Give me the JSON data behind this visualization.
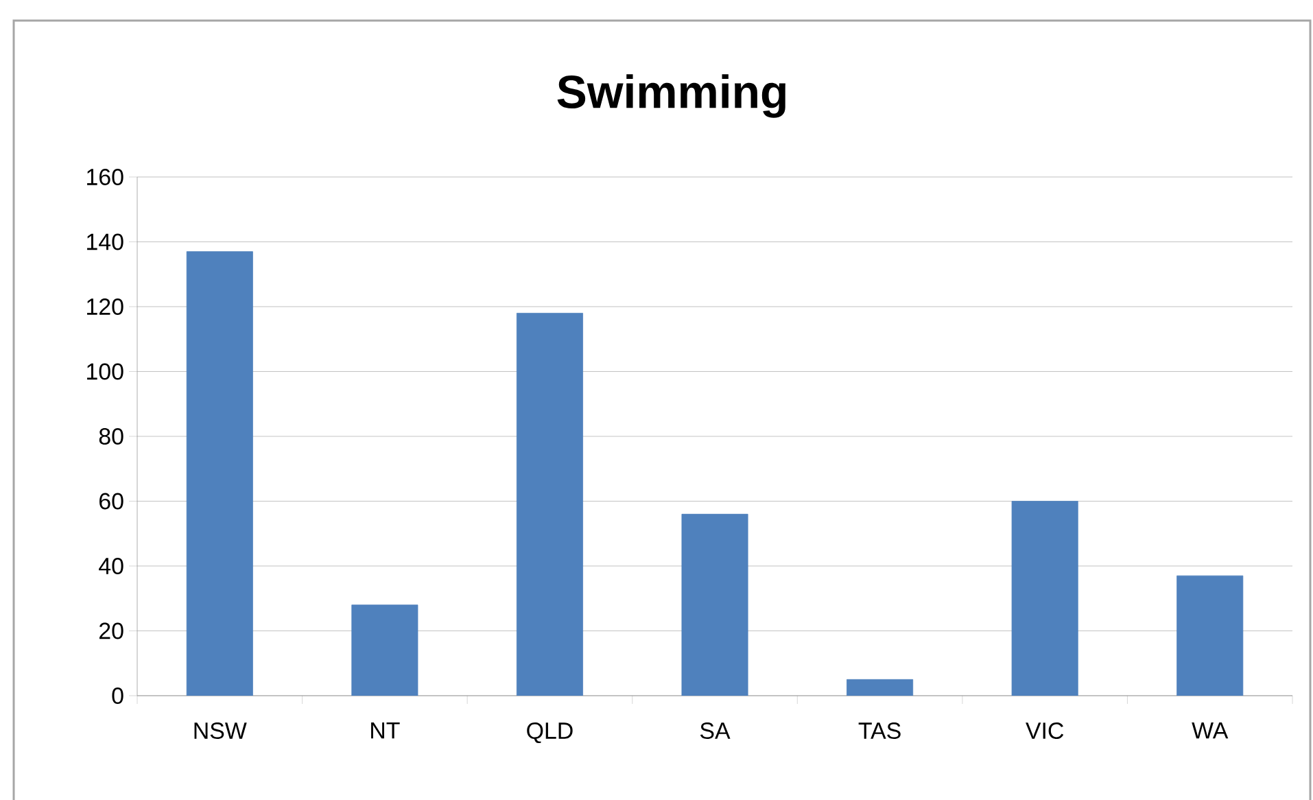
{
  "chart_data": {
    "type": "bar",
    "title": "Swimming",
    "categories": [
      "NSW",
      "NT",
      "QLD",
      "SA",
      "TAS",
      "VIC",
      "WA"
    ],
    "values": [
      137,
      28,
      118,
      56,
      5,
      60,
      37
    ],
    "color": "#4f81bd",
    "ylim": [
      0,
      160
    ],
    "yticks": [
      0,
      20,
      40,
      60,
      80,
      100,
      120,
      140,
      160
    ],
    "grid": "y"
  }
}
